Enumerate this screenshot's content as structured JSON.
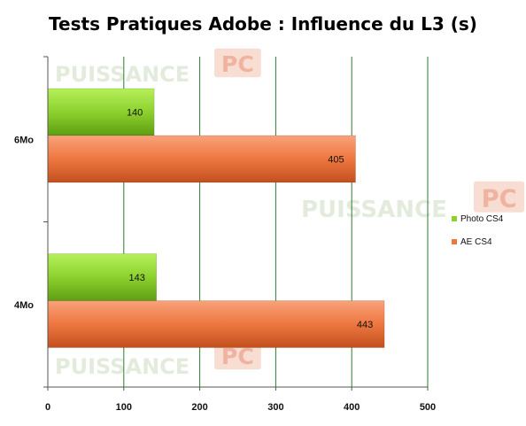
{
  "chart_data": {
    "type": "bar",
    "orientation": "horizontal",
    "title": "Tests Pratiques Adobe : Influence du L3 (s)",
    "categories": [
      "6Mo",
      "4Mo"
    ],
    "series": [
      {
        "name": "Photo CS4",
        "values": [
          140,
          143
        ],
        "color": "#8CD12E"
      },
      {
        "name": "AE CS4",
        "values": [
          405,
          443
        ],
        "color": "#EE7740"
      }
    ],
    "xlim": [
      0,
      500
    ],
    "x_ticks": [
      0,
      100,
      200,
      300,
      400,
      500
    ],
    "grid": true,
    "legend": "right"
  },
  "watermark": {
    "text": "PUISSANCE",
    "badge": "PC"
  }
}
